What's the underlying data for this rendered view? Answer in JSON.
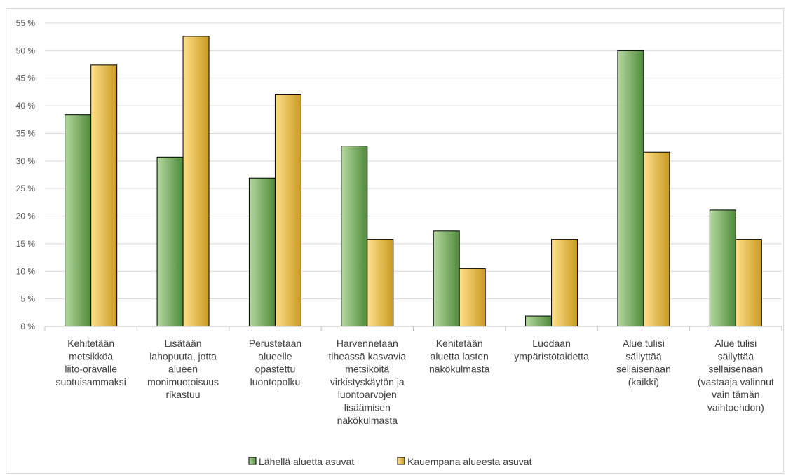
{
  "chart_data": {
    "type": "bar",
    "categories": [
      [
        "Kehitetään",
        "metsikköä",
        "liito-oravalle",
        "suotuisammaksi"
      ],
      [
        "Lisätään",
        "lahopuuta, jotta",
        "alueen",
        "monimuotoisuus",
        "rikastuu"
      ],
      [
        "Perustetaan",
        "alueelle",
        "opastettu",
        "luontopolku"
      ],
      [
        "Harvennetaan",
        "tiheässä kasvavia",
        "metsiköitä",
        "virkistyskäytön ja",
        "luontoarvojen",
        "lisäämisen",
        "näkökulmasta"
      ],
      [
        "Kehitetään",
        "aluetta lasten",
        "näkökulmasta"
      ],
      [
        "Luodaan",
        "ympäristötaidetta"
      ],
      [
        "Alue tulisi",
        "säilyttää",
        "sellaisenaan",
        "(kaikki)"
      ],
      [
        "Alue tulisi",
        "säilyttää",
        "sellaisenaan",
        "(vastaaja valinnut",
        "vain tämän",
        "vaihtoehdon)"
      ]
    ],
    "series": [
      {
        "name": "Lähellä aluetta asuvat",
        "values": [
          38.4,
          30.7,
          26.9,
          32.7,
          17.3,
          1.9,
          50.0,
          21.1
        ],
        "color_light": "#b5d9a0",
        "color_dark": "#4f8a3a"
      },
      {
        "name": "Kauempana alueesta asuvat",
        "values": [
          47.4,
          52.6,
          42.1,
          15.8,
          10.5,
          15.8,
          31.6,
          15.8
        ],
        "color_light": "#ffe08a",
        "color_dark": "#c99a22"
      }
    ],
    "ylim": [
      0,
      55
    ],
    "yticks": [
      0,
      5,
      10,
      15,
      20,
      25,
      30,
      35,
      40,
      45,
      50,
      55
    ],
    "ytick_labels": [
      "0 %",
      "5 %",
      "10 %",
      "15 %",
      "20 %",
      "25 %",
      "30 %",
      "35 %",
      "40 %",
      "45 %",
      "50 %",
      "55 %"
    ],
    "grid": true,
    "legend_position": "bottom"
  }
}
